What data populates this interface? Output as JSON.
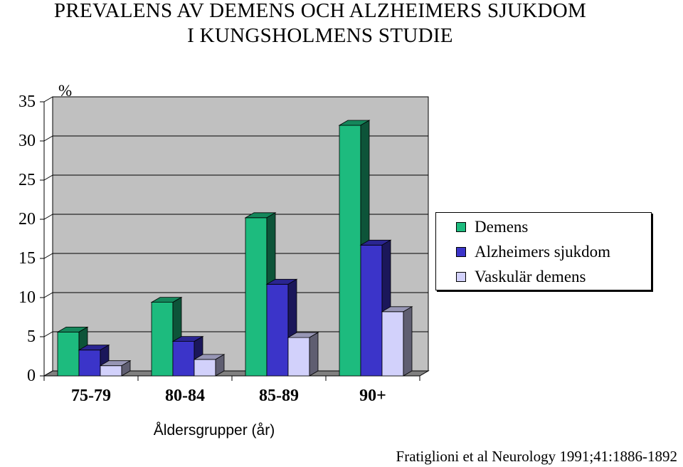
{
  "titles": {
    "line1": "PREVALENS AV DEMENS OCH ALZHEIMERS SJUKDOM",
    "line2": "I KUNGSHOLMENS STUDIE"
  },
  "source": "Fratiglioni et al Neurology 1991;41:1886-1892",
  "chart_data": {
    "type": "bar",
    "categories": [
      "75-79",
      "80-84",
      "85-89",
      "90+"
    ],
    "series": [
      {
        "name": "Demens",
        "values": [
          5.6,
          9.4,
          20.2,
          32.0
        ],
        "color": "#1dbb7e"
      },
      {
        "name": "Alzheimers sjukdom",
        "values": [
          3.3,
          4.4,
          11.7,
          16.7
        ],
        "color": "#3b34c9"
      },
      {
        "name": "Vaskulär demens",
        "values": [
          1.3,
          2.1,
          4.9,
          8.2
        ],
        "color": "#d2d1fb"
      }
    ],
    "ylabel": "%",
    "xlabel": "Åldersgrupper (år)",
    "yticks": [
      0,
      5,
      10,
      15,
      20,
      25,
      30,
      35
    ],
    "ylim": [
      0,
      35
    ],
    "grid": true,
    "legend": "right",
    "colors": {
      "wall": "#c0c0c0",
      "grid": "#000000",
      "floor": "#808080"
    }
  }
}
